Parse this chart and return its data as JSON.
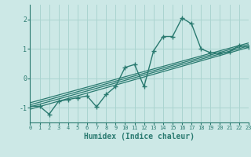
{
  "bg_color": "#cce8e6",
  "line_color": "#2a7a70",
  "grid_color": "#aad4d0",
  "xlim": [
    0,
    23
  ],
  "ylim": [
    -1.5,
    2.5
  ],
  "yticks": [
    -1,
    0,
    1,
    2
  ],
  "xticks": [
    0,
    1,
    2,
    3,
    4,
    5,
    6,
    7,
    8,
    9,
    10,
    11,
    12,
    13,
    14,
    15,
    16,
    17,
    18,
    19,
    20,
    21,
    22,
    23
  ],
  "xlabel": "Humidex (Indice chaleur)",
  "series_x": [
    0,
    1,
    2,
    3,
    4,
    5,
    6,
    7,
    8,
    9,
    10,
    11,
    12,
    13,
    14,
    15,
    16,
    17,
    18,
    19,
    20,
    21,
    22,
    23
  ],
  "series_y": [
    -0.95,
    -0.95,
    -1.22,
    -0.78,
    -0.72,
    -0.66,
    -0.6,
    -0.97,
    -0.55,
    -0.28,
    0.37,
    0.47,
    -0.28,
    0.93,
    1.42,
    1.42,
    2.05,
    1.85,
    1.0,
    0.87,
    0.85,
    0.9,
    1.12,
    1.05
  ],
  "reg_lines": [
    {
      "x0": 0,
      "y0": -1.05,
      "x1": 23,
      "y1": 1.05
    },
    {
      "x0": 0,
      "y0": -0.97,
      "x1": 23,
      "y1": 1.1
    },
    {
      "x0": 0,
      "y0": -0.9,
      "x1": 23,
      "y1": 1.15
    },
    {
      "x0": 0,
      "y0": -0.83,
      "x1": 23,
      "y1": 1.2
    }
  ]
}
